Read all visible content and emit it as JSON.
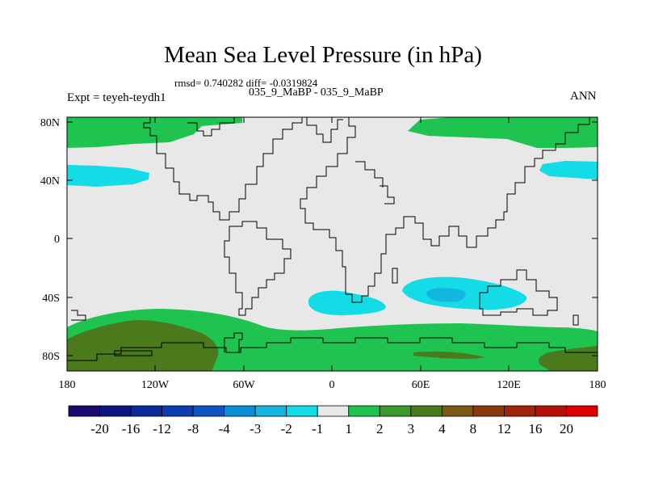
{
  "header": {
    "title": "Mean Sea Level Pressure (in hPa)",
    "stats": "rmsd= 0.740282 diff= -0.0319824",
    "subtitle": "035_9_MaBP - 035_9_MaBP",
    "left_label": "Expt = teyeh-teydh1",
    "right_label": "ANN"
  },
  "map": {
    "lat_ticks": [
      "80N",
      "40N",
      "0",
      "40S",
      "80S"
    ],
    "lon_ticks": [
      "180",
      "120W",
      "60W",
      "0",
      "60E",
      "120E",
      "180"
    ],
    "land_color": "#e8e8e8"
  },
  "colorbar": {
    "labels": [
      "-20",
      "-16",
      "-12",
      "-8",
      "-4",
      "-3",
      "-2",
      "-1",
      "1",
      "2",
      "3",
      "4",
      "8",
      "12",
      "16",
      "20"
    ],
    "colors": [
      "#1a0a6e",
      "#0c1680",
      "#0a2a9a",
      "#0c3eb0",
      "#0f56c4",
      "#0a8fd6",
      "#14b6e0",
      "#14dce6",
      "#e8e8e8",
      "#1ec350",
      "#3c9a2d",
      "#4a7a1c",
      "#7a5a16",
      "#8a3a0e",
      "#9e240c",
      "#b40f08",
      "#e00000"
    ]
  }
}
